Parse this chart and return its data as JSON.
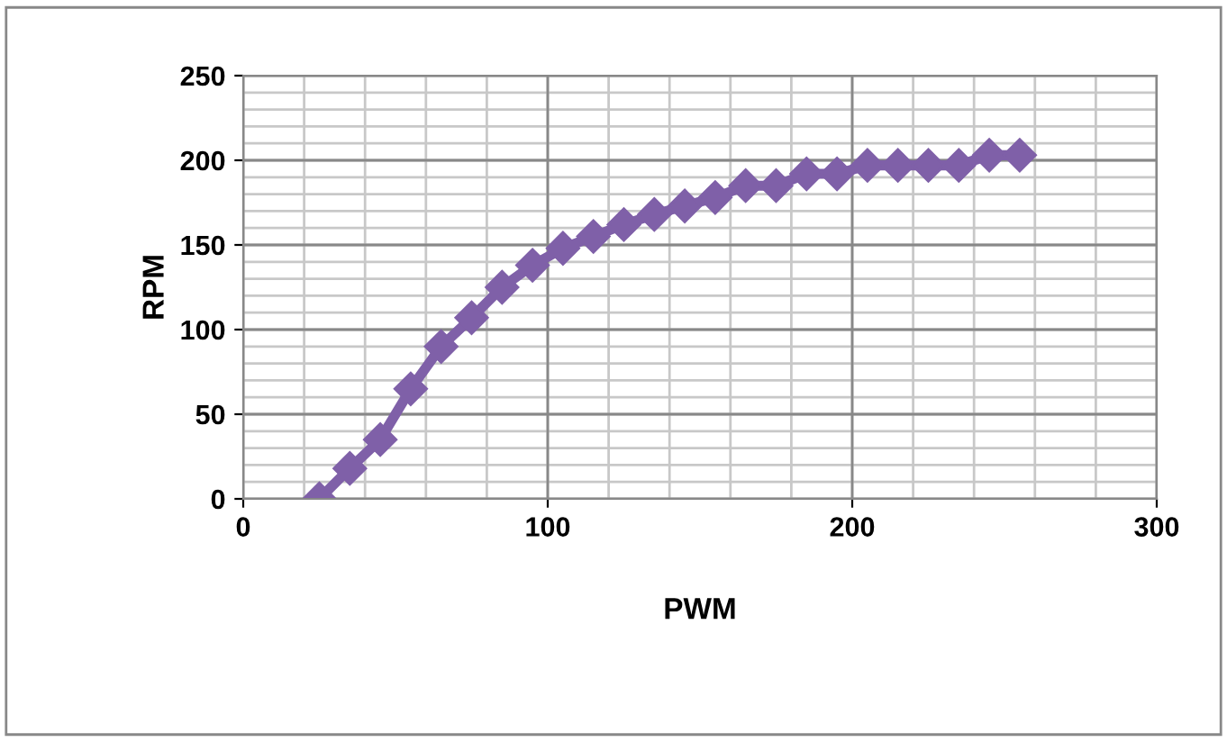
{
  "chart_data": {
    "type": "line",
    "xlabel": "PWM",
    "ylabel": "RPM",
    "x": [
      25,
      35,
      45,
      55,
      65,
      75,
      85,
      95,
      105,
      115,
      125,
      135,
      145,
      155,
      165,
      175,
      185,
      195,
      205,
      215,
      225,
      235,
      245,
      255
    ],
    "series": [
      {
        "color": "#7f60a8",
        "values": [
          0,
          18,
          35,
          65,
          90,
          107,
          125,
          138,
          148,
          155,
          162,
          168,
          173,
          178,
          185,
          185,
          192,
          192,
          197,
          197,
          197,
          197,
          203,
          203
        ]
      }
    ],
    "xlim": [
      0,
      300
    ],
    "xticks": [
      0,
      100,
      200,
      300
    ],
    "ylim": [
      0,
      250
    ],
    "yticks": [
      0,
      50,
      100,
      150,
      200,
      250
    ],
    "grid": true,
    "marker": "diamond",
    "line_style": "solid",
    "legend": false
  }
}
